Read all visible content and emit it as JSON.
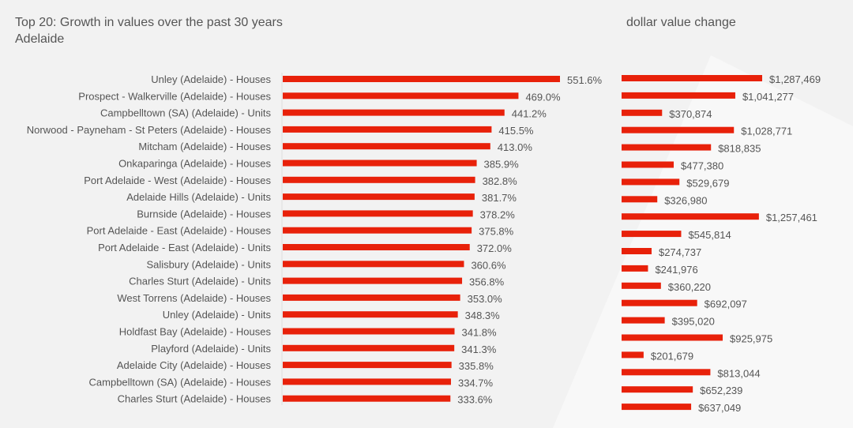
{
  "chart_data": [
    {
      "type": "bar",
      "orientation": "horizontal",
      "title": "Top 20:  Growth in values over the past 30 years",
      "subtitle": "Adelaide",
      "categories": [
        "Unley (Adelaide) - Houses",
        "Prospect - Walkerville (Adelaide) - Houses",
        "Campbelltown (SA) (Adelaide) - Units",
        "Norwood - Payneham - St Peters (Adelaide) - Houses",
        "Mitcham (Adelaide) - Houses",
        "Onkaparinga (Adelaide) - Houses",
        "Port Adelaide - West (Adelaide) - Houses",
        "Adelaide Hills (Adelaide) - Units",
        "Burnside (Adelaide) - Houses",
        "Port Adelaide - East (Adelaide) - Houses",
        "Port Adelaide - East (Adelaide) - Units",
        "Salisbury (Adelaide) - Units",
        "Charles Sturt (Adelaide) - Units",
        "West Torrens (Adelaide) - Houses",
        "Unley (Adelaide) - Units",
        "Holdfast Bay (Adelaide) - Houses",
        "Playford (Adelaide) - Units",
        "Adelaide City (Adelaide) - Houses",
        "Campbelltown (SA) (Adelaide) - Houses",
        "Charles Sturt (Adelaide) - Houses"
      ],
      "values": [
        551.6,
        469.0,
        441.2,
        415.5,
        413.0,
        385.9,
        382.8,
        381.7,
        378.2,
        375.8,
        372.0,
        360.6,
        356.8,
        353.0,
        348.3,
        341.8,
        341.3,
        335.8,
        334.7,
        333.6
      ],
      "labels": [
        "551.6%",
        "469.0%",
        "441.2%",
        "415.5%",
        "413.0%",
        "385.9%",
        "382.8%",
        "381.7%",
        "378.2%",
        "375.8%",
        "372.0%",
        "360.6%",
        "356.8%",
        "353.0%",
        "348.3%",
        "341.8%",
        "341.3%",
        "335.8%",
        "334.7%",
        "333.6%"
      ],
      "unit": "%",
      "color": "#e8210a",
      "grid": false
    },
    {
      "type": "bar",
      "orientation": "horizontal",
      "title": "dollar value change",
      "values": [
        1287469,
        1041277,
        370874,
        1028771,
        818835,
        477380,
        529679,
        326980,
        1257461,
        545814,
        274737,
        241976,
        360220,
        692097,
        395020,
        925975,
        201679,
        813044,
        652239,
        637049
      ],
      "labels": [
        "$1,287,469",
        "$1,041,277",
        "$370,874",
        "$1,028,771",
        "$818,835",
        "$477,380",
        "$529,679",
        "$326,980",
        "$1,257,461",
        "$545,814",
        "$274,737",
        "$241,976",
        "$360,220",
        "$692,097",
        "$395,020",
        "$925,975",
        "$201,679",
        "$813,044",
        "$652,239",
        "$637,049"
      ],
      "color": "#e8210a",
      "grid": false
    }
  ]
}
